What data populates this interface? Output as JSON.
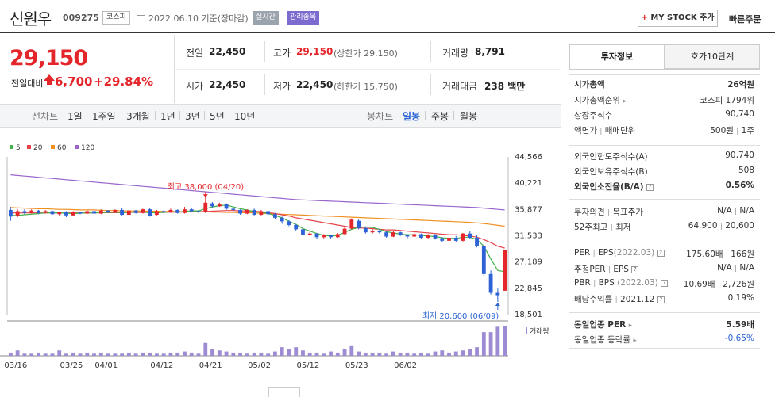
{
  "header": {
    "name": "신원우",
    "code": "009275",
    "market": "코스피",
    "date": "2022.06.10",
    "basis": "기준(장마감)",
    "realtime": "실시간",
    "mgmt": "관리종목",
    "mystock_plus": "+",
    "mystock": "MY STOCK 추가",
    "quick": "빠른주문"
  },
  "price": {
    "current": "29,150",
    "change_label": "전일대비",
    "change": "6,700",
    "pct": "+29.84%"
  },
  "summary": {
    "prev": {
      "label": "전일",
      "value": "22,450"
    },
    "high": {
      "label": "고가",
      "value": "29,150",
      "sub": "(상한가 29,150)"
    },
    "volume": {
      "label": "거래량",
      "value": "8,791"
    },
    "open": {
      "label": "시가",
      "value": "22,450"
    },
    "low": {
      "label": "저가",
      "value": "22,450",
      "sub": "(하한가 15,750)"
    },
    "amount": {
      "label": "거래대금",
      "value": "238 백만"
    }
  },
  "periods": {
    "head": "선차트",
    "items": [
      "1일",
      "1주일",
      "3개월",
      "1년",
      "3년",
      "5년",
      "10년"
    ],
    "cand_head": "봉차트",
    "cand": [
      "일봉",
      "주봉",
      "월봉"
    ],
    "cand_active": "일봉"
  },
  "colors": {
    "up": "#e4262b",
    "down": "#2d61d6",
    "ma5": "#42b14a",
    "ma20": "#e4434a",
    "ma60": "#f09021",
    "ma120": "#9966cc",
    "vol": "#9d8bd3",
    "accent": "#2a64d3"
  },
  "tabs": {
    "info": "투자정보",
    "hoga": "호가10단계"
  },
  "info": {
    "cap": {
      "label": "시가총액",
      "value": "26억원"
    },
    "cap_rank": {
      "label": "시가총액순위",
      "value": "코스피 1794위"
    },
    "shares": {
      "label": "상장주식수",
      "value": "90,740"
    },
    "par": {
      "label": "액면가",
      "label2": "매매단위",
      "value": "500원",
      "value2": "1주"
    },
    "foreign_limit": {
      "label": "외국인한도주식수(A)",
      "value": "90,740"
    },
    "foreign_hold": {
      "label": "외국인보유주식수(B)",
      "value": "508"
    },
    "foreign_ratio": {
      "label": "외국인소진율(B/A)",
      "value": "0.56%"
    },
    "opinion": {
      "label": "투자의견",
      "label2": "목표주가",
      "value": "N/A",
      "value2": "N/A"
    },
    "w52": {
      "label": "52주최고",
      "label2": "최저",
      "value": "64,900",
      "value2": "20,600"
    },
    "per": {
      "label": "PER",
      "label2": "EPS",
      "year": "(2022.03)",
      "value": "175.60배",
      "value2": "166원"
    },
    "eper": {
      "label": "추정PER",
      "label2": "EPS",
      "value": "N/A",
      "value2": "N/A"
    },
    "pbr": {
      "label": "PBR",
      "label2": "BPS",
      "year": "(2022.03)",
      "value": "10.69배",
      "value2": "2,726원"
    },
    "div": {
      "label": "배당수익률",
      "year": "2021.12",
      "value": "0.19%"
    },
    "sector_per": {
      "label": "동일업종 PER",
      "value": "5.59배"
    },
    "sector_rate": {
      "label": "동일업종 등락률",
      "value": "-0.65%"
    }
  },
  "chart_data": {
    "type": "candlestick",
    "legend": [
      "5",
      "20",
      "60",
      "120"
    ],
    "y_ticks": [
      "44,566",
      "40,221",
      "35,877",
      "31,533",
      "27,189",
      "22,845",
      "18,501"
    ],
    "ylim": [
      18501,
      44566
    ],
    "x_ticks": [
      "03/16",
      "03/25",
      "04/01",
      "04/12",
      "04/21",
      "05/02",
      "05/12",
      "05/23",
      "06/02"
    ],
    "annot_high": "최고 38,000 (04/20)",
    "annot_low": "최저 20,600 (06/09)",
    "vol_label": "거래량",
    "candles": [
      {
        "o": 35800,
        "c": 34700,
        "h": 36300,
        "l": 34000
      },
      {
        "o": 34800,
        "c": 35600,
        "h": 35900,
        "l": 34600
      },
      {
        "o": 35600,
        "c": 35300,
        "h": 35900,
        "l": 35100
      },
      {
        "o": 35300,
        "c": 35700,
        "h": 35900,
        "l": 35200
      },
      {
        "o": 35700,
        "c": 35300,
        "h": 35800,
        "l": 35100
      },
      {
        "o": 35300,
        "c": 35600,
        "h": 35800,
        "l": 35200
      },
      {
        "o": 35600,
        "c": 35100,
        "h": 35700,
        "l": 35000
      },
      {
        "o": 35100,
        "c": 35400,
        "h": 35500,
        "l": 34800
      },
      {
        "o": 35400,
        "c": 34900,
        "h": 35600,
        "l": 34600
      },
      {
        "o": 34900,
        "c": 35400,
        "h": 35600,
        "l": 34800
      },
      {
        "o": 35400,
        "c": 35200,
        "h": 35500,
        "l": 35100
      },
      {
        "o": 35200,
        "c": 35600,
        "h": 35700,
        "l": 35100
      },
      {
        "o": 35600,
        "c": 35200,
        "h": 35700,
        "l": 35000
      },
      {
        "o": 35200,
        "c": 35700,
        "h": 35900,
        "l": 35100
      },
      {
        "o": 35700,
        "c": 35400,
        "h": 35800,
        "l": 35300
      },
      {
        "o": 35400,
        "c": 35800,
        "h": 35900,
        "l": 35300
      },
      {
        "o": 35800,
        "c": 35000,
        "h": 36100,
        "l": 34900
      },
      {
        "o": 35000,
        "c": 35700,
        "h": 35800,
        "l": 34900
      },
      {
        "o": 35700,
        "c": 35300,
        "h": 35800,
        "l": 35200
      },
      {
        "o": 35300,
        "c": 35900,
        "h": 36000,
        "l": 35200
      },
      {
        "o": 35900,
        "c": 34800,
        "h": 36100,
        "l": 34700
      },
      {
        "o": 35000,
        "c": 35600,
        "h": 35800,
        "l": 34900
      },
      {
        "o": 35600,
        "c": 35400,
        "h": 35800,
        "l": 35300
      },
      {
        "o": 35400,
        "c": 35800,
        "h": 36000,
        "l": 35300
      },
      {
        "o": 35800,
        "c": 35300,
        "h": 35900,
        "l": 35200
      },
      {
        "o": 35300,
        "c": 35900,
        "h": 36300,
        "l": 35200
      },
      {
        "o": 35900,
        "c": 35600,
        "h": 36100,
        "l": 35500
      },
      {
        "o": 35600,
        "c": 35400,
        "h": 35700,
        "l": 35300
      },
      {
        "o": 35400,
        "c": 37000,
        "h": 38000,
        "l": 35300
      },
      {
        "o": 36900,
        "c": 36400,
        "h": 37100,
        "l": 36200
      },
      {
        "o": 36400,
        "c": 36800,
        "h": 37000,
        "l": 36300
      },
      {
        "o": 36800,
        "c": 36000,
        "h": 36900,
        "l": 35800
      },
      {
        "o": 36000,
        "c": 35800,
        "h": 36200,
        "l": 35600
      },
      {
        "o": 35800,
        "c": 35200,
        "h": 35900,
        "l": 35000
      },
      {
        "o": 35200,
        "c": 35800,
        "h": 35900,
        "l": 35100
      },
      {
        "o": 35800,
        "c": 35000,
        "h": 36000,
        "l": 34900
      },
      {
        "o": 35000,
        "c": 35600,
        "h": 35800,
        "l": 34900
      },
      {
        "o": 35600,
        "c": 35100,
        "h": 35700,
        "l": 34800
      },
      {
        "o": 35100,
        "c": 34500,
        "h": 35300,
        "l": 34300
      },
      {
        "o": 34500,
        "c": 33900,
        "h": 34700,
        "l": 33500
      },
      {
        "o": 33900,
        "c": 33300,
        "h": 34100,
        "l": 33100
      },
      {
        "o": 33300,
        "c": 32600,
        "h": 33500,
        "l": 32400
      },
      {
        "o": 32600,
        "c": 31600,
        "h": 32800,
        "l": 31300
      },
      {
        "o": 31600,
        "c": 31900,
        "h": 32400,
        "l": 31500
      },
      {
        "o": 31900,
        "c": 31300,
        "h": 32000,
        "l": 31000
      },
      {
        "o": 31300,
        "c": 31600,
        "h": 31800,
        "l": 31100
      },
      {
        "o": 31600,
        "c": 31300,
        "h": 31700,
        "l": 31100
      },
      {
        "o": 31300,
        "c": 31800,
        "h": 32000,
        "l": 31200
      },
      {
        "o": 31800,
        "c": 32700,
        "h": 33000,
        "l": 31700
      },
      {
        "o": 32700,
        "c": 34200,
        "h": 34400,
        "l": 32600
      },
      {
        "o": 34000,
        "c": 32800,
        "h": 34200,
        "l": 32600
      },
      {
        "o": 32800,
        "c": 32100,
        "h": 33000,
        "l": 31900
      },
      {
        "o": 32100,
        "c": 32300,
        "h": 32600,
        "l": 31900
      },
      {
        "o": 32300,
        "c": 32100,
        "h": 32600,
        "l": 31900
      },
      {
        "o": 32100,
        "c": 31400,
        "h": 32300,
        "l": 31200
      },
      {
        "o": 31400,
        "c": 32100,
        "h": 32300,
        "l": 31300
      },
      {
        "o": 32100,
        "c": 31700,
        "h": 32200,
        "l": 31500
      },
      {
        "o": 31700,
        "c": 31400,
        "h": 31800,
        "l": 31000
      },
      {
        "o": 31400,
        "c": 31800,
        "h": 32100,
        "l": 31300
      },
      {
        "o": 31800,
        "c": 31200,
        "h": 31900,
        "l": 31000
      },
      {
        "o": 31200,
        "c": 31600,
        "h": 31800,
        "l": 31100
      },
      {
        "o": 31600,
        "c": 31100,
        "h": 31800,
        "l": 30900
      },
      {
        "o": 31100,
        "c": 30700,
        "h": 31300,
        "l": 30500
      },
      {
        "o": 30700,
        "c": 31200,
        "h": 31400,
        "l": 30600
      },
      {
        "o": 31200,
        "c": 30700,
        "h": 31500,
        "l": 30500
      },
      {
        "o": 30700,
        "c": 31900,
        "h": 32000,
        "l": 30600
      },
      {
        "o": 31900,
        "c": 31200,
        "h": 32300,
        "l": 31000
      },
      {
        "o": 31200,
        "c": 29900,
        "h": 31700,
        "l": 29600
      },
      {
        "o": 29900,
        "c": 25200,
        "h": 30100,
        "l": 24900
      },
      {
        "o": 25200,
        "c": 22100,
        "h": 25800,
        "l": 21800
      },
      {
        "o": 22100,
        "c": 21700,
        "h": 22800,
        "l": 20600
      },
      {
        "o": 22450,
        "c": 29150,
        "h": 29150,
        "l": 22450
      }
    ],
    "volume": [
      3,
      5,
      2,
      2,
      3,
      2,
      2,
      5,
      2,
      3,
      2,
      3,
      2,
      3,
      2,
      2,
      2,
      3,
      2,
      3,
      3,
      2,
      2,
      3,
      3,
      4,
      3,
      2,
      12,
      6,
      5,
      4,
      3,
      3,
      2,
      3,
      3,
      2,
      4,
      8,
      6,
      8,
      5,
      3,
      3,
      2,
      4,
      3,
      6,
      9,
      4,
      3,
      3,
      3,
      2,
      4,
      3,
      3,
      2,
      3,
      2,
      4,
      5,
      3,
      4,
      5,
      6,
      8,
      22,
      22,
      27,
      28
    ],
    "ma5": [
      34900,
      34900,
      35000,
      35100,
      35200,
      35300,
      35350,
      35300,
      35250,
      35200,
      35250,
      35300,
      35300,
      35350,
      35400,
      35450,
      35350,
      35400,
      35450,
      35500,
      35300,
      35350,
      35400,
      35500,
      35450,
      35550,
      35650,
      35650,
      36000,
      36300,
      36500,
      36600,
      36300,
      36000,
      35800,
      35500,
      35400,
      35200,
      34900,
      34500,
      33900,
      33400,
      32700,
      32300,
      31900,
      31600,
      31500,
      31600,
      32100,
      32600,
      32900,
      33000,
      32900,
      32600,
      32200,
      32000,
      31800,
      31700,
      31700,
      31600,
      31500,
      31400,
      31200,
      31100,
      31100,
      31300,
      31300,
      30900,
      29800,
      27700,
      25800,
      25600
    ],
    "ma20": [
      35300,
      35300,
      35300,
      35300,
      35300,
      35300,
      35300,
      35300,
      35300,
      35300,
      35300,
      35300,
      35300,
      35350,
      35350,
      35350,
      35350,
      35400,
      35400,
      35400,
      35400,
      35400,
      35400,
      35450,
      35450,
      35450,
      35500,
      35500,
      35550,
      35600,
      35650,
      35700,
      35700,
      35650,
      35650,
      35600,
      35500,
      35350,
      35200,
      35000,
      34800,
      34500,
      34300,
      34100,
      33900,
      33700,
      33500,
      33300,
      33100,
      32900,
      32800,
      32800,
      32700,
      32600,
      32500,
      32500,
      32400,
      32300,
      32200,
      32100,
      32000,
      31900,
      31800,
      31700,
      31700,
      31600,
      31500,
      31300,
      30900,
      30400,
      29800,
      29500
    ],
    "ma60": [
      36200,
      36150,
      36100,
      36050,
      36000,
      36000,
      35950,
      35900,
      35900,
      35850,
      35800,
      35800,
      35800,
      35750,
      35700,
      35700,
      35650,
      35650,
      35650,
      35600,
      35600,
      35600,
      35550,
      35550,
      35550,
      35500,
      35500,
      35500,
      35500,
      35450,
      35450,
      35400,
      35400,
      35350,
      35350,
      35300,
      35250,
      35200,
      35150,
      35100,
      35050,
      35000,
      34950,
      34900,
      34850,
      34800,
      34750,
      34700,
      34650,
      34600,
      34550,
      34500,
      34450,
      34400,
      34350,
      34300,
      34250,
      34200,
      34150,
      34100,
      34050,
      34000,
      33950,
      33900,
      33850,
      33800,
      33750,
      33650,
      33550,
      33400,
      33250,
      33100
    ],
    "ma120": [
      41600,
      41500,
      41400,
      41300,
      41200,
      41100,
      41000,
      40900,
      40800,
      40700,
      40600,
      40500,
      40400,
      40300,
      40200,
      40100,
      40000,
      39900,
      39800,
      39700,
      39600,
      39500,
      39400,
      39300,
      39200,
      39100,
      39000,
      38900,
      38800,
      38700,
      38600,
      38500,
      38400,
      38300,
      38200,
      38100,
      38000,
      37900,
      37800,
      37700,
      37600,
      37500,
      37450,
      37400,
      37350,
      37300,
      37250,
      37200,
      37150,
      37100,
      37050,
      37000,
      36950,
      36900,
      36850,
      36800,
      36750,
      36700,
      36650,
      36600,
      36550,
      36500,
      36450,
      36400,
      36350,
      36300,
      36250,
      36200,
      36100,
      36000,
      35900,
      35800
    ]
  }
}
